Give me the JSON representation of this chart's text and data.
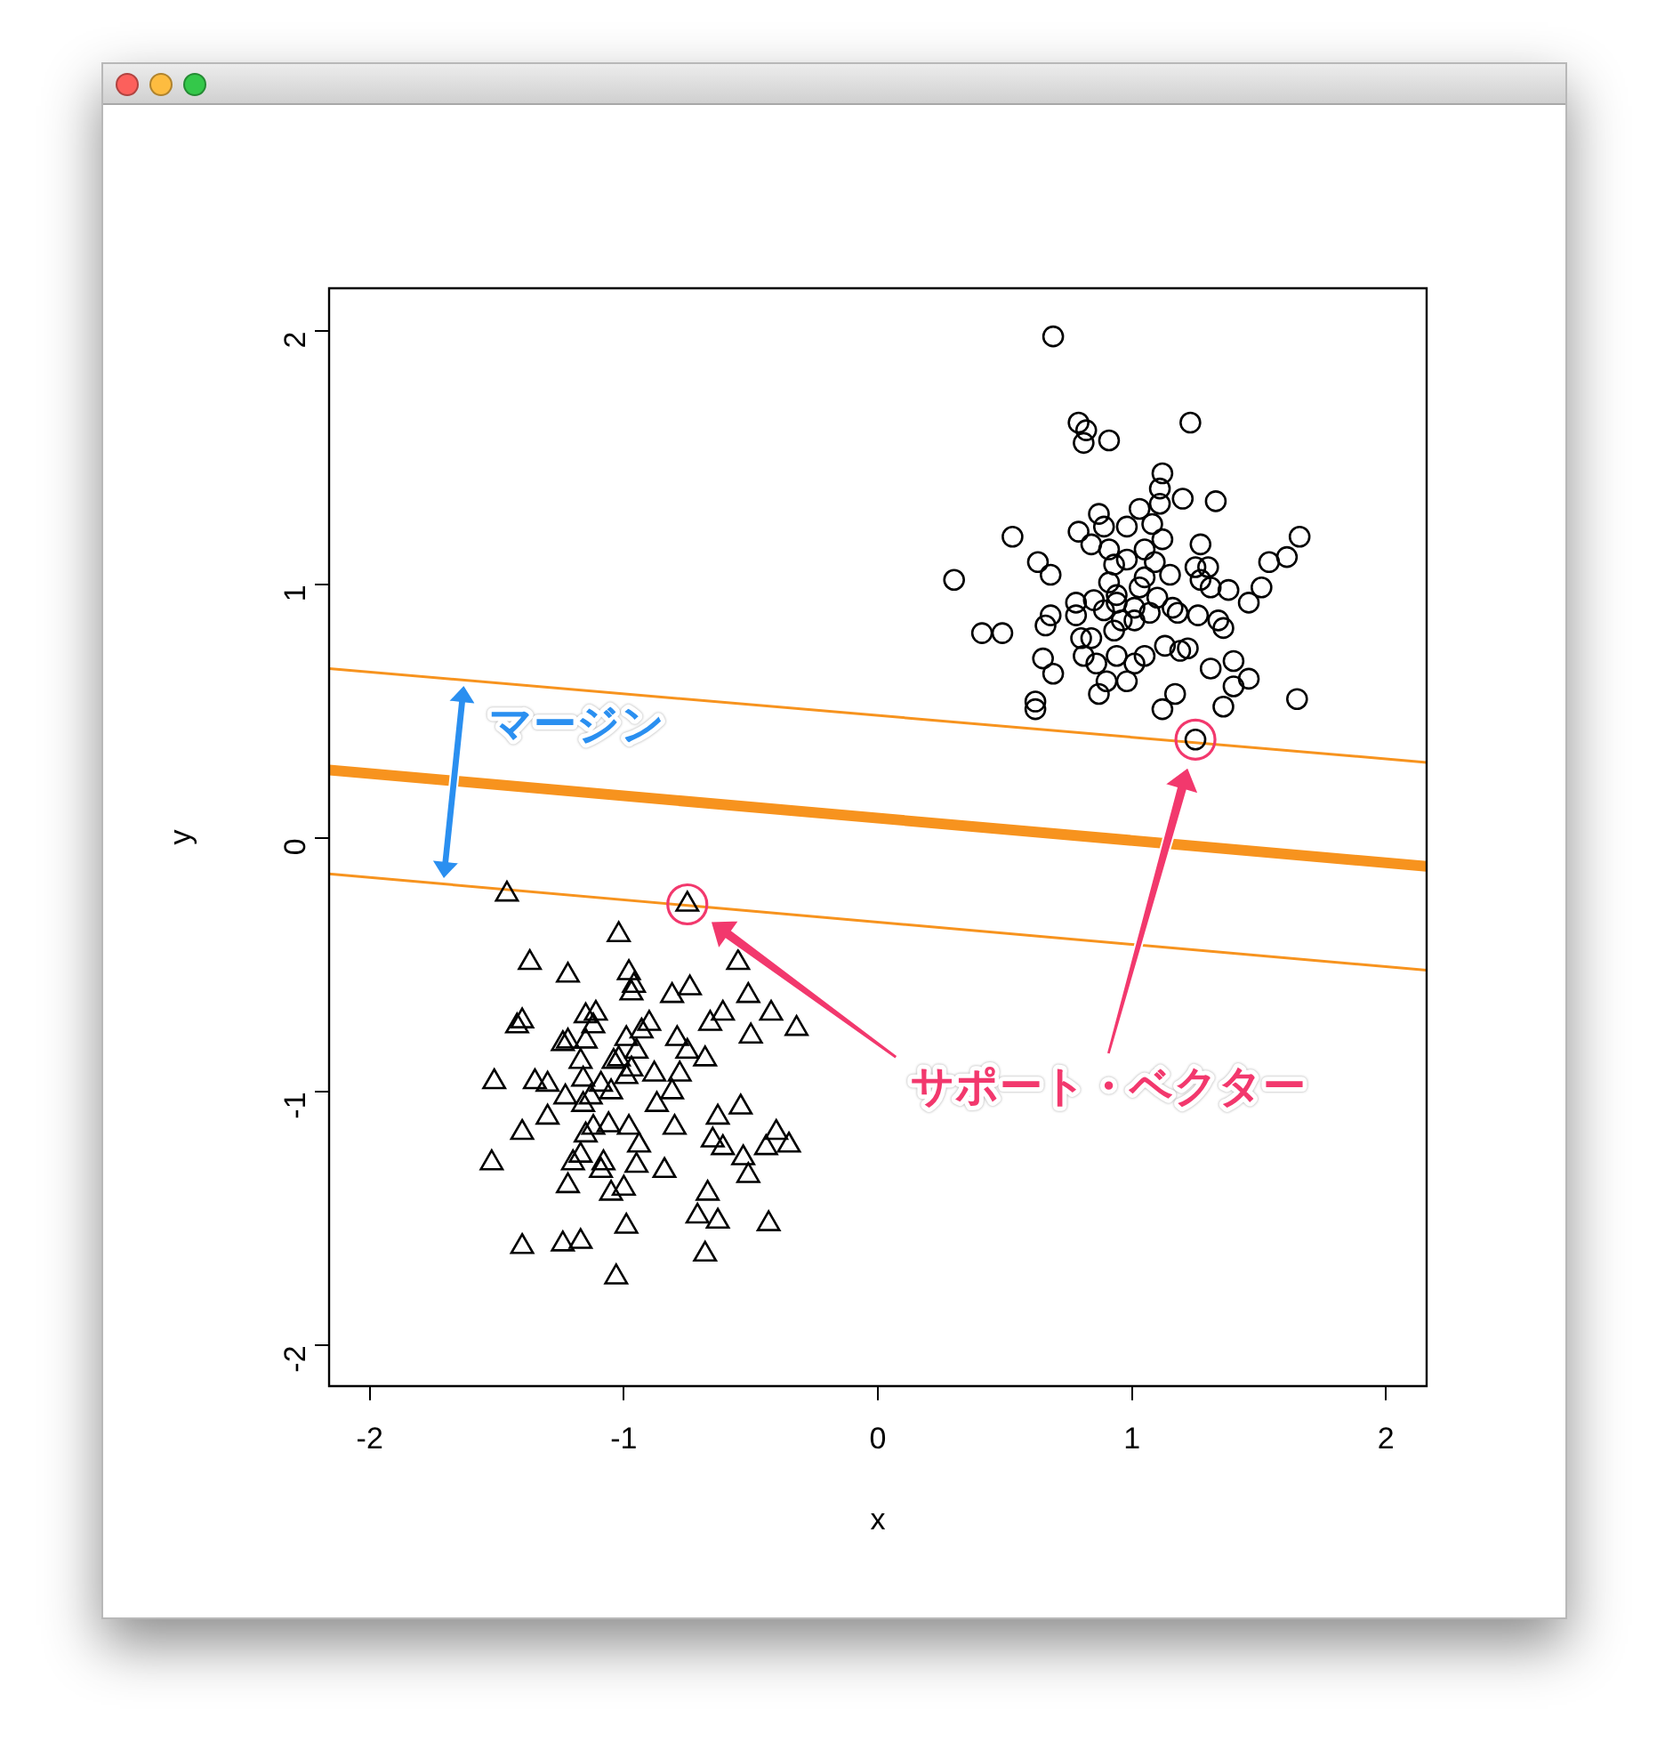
{
  "chart_data": {
    "type": "scatter",
    "xlabel": "x",
    "ylabel": "y",
    "xlim": [
      -2.16,
      2.16
    ],
    "ylim": [
      -2.16,
      2.17
    ],
    "xticks": [
      -2,
      -1,
      0,
      1,
      2
    ],
    "yticks": [
      -2,
      -1,
      0,
      1,
      2
    ],
    "grid": false,
    "legend": false,
    "annotations": [
      "マージン",
      "サポート・ベクター"
    ],
    "series": [
      {
        "type": "scatter",
        "marker": "circle",
        "color": "#000000",
        "x": [
          0.69,
          0.79,
          0.82,
          0.81,
          0.91,
          1.23,
          1.12,
          1.11,
          1.11,
          1.2,
          1.33,
          0.87,
          1.03,
          0.53,
          1.66,
          0.79,
          0.84,
          0.89,
          0.98,
          1.08,
          1.12,
          1.27,
          1.61,
          1.54,
          0.3,
          0.63,
          0.68,
          0.91,
          0.93,
          0.98,
          1.05,
          1.09,
          1.05,
          1.15,
          1.25,
          1.3,
          1.27,
          1.31,
          1.38,
          1.51,
          1.46,
          0.91,
          0.94,
          1.03,
          1.1,
          0.78,
          0.85,
          0.89,
          0.94,
          1.01,
          1.07,
          1.16,
          1.18,
          1.26,
          0.68,
          0.66,
          0.78,
          0.96,
          1.01,
          0.93,
          1.34,
          1.36,
          0.41,
          0.49,
          0.8,
          0.84,
          1.13,
          1.19,
          1.22,
          0.65,
          0.81,
          0.86,
          0.94,
          1.01,
          1.05,
          1.31,
          1.4,
          1.46,
          1.4,
          0.69,
          0.9,
          0.98,
          0.87,
          1.17,
          1.12,
          1.36,
          1.65,
          0.62,
          0.62,
          1.25
        ],
        "values": [
          1.98,
          1.64,
          1.61,
          1.56,
          1.57,
          1.64,
          1.44,
          1.38,
          1.32,
          1.34,
          1.33,
          1.28,
          1.3,
          1.19,
          1.19,
          1.21,
          1.16,
          1.23,
          1.23,
          1.24,
          1.18,
          1.16,
          1.11,
          1.09,
          1.02,
          1.09,
          1.04,
          1.14,
          1.08,
          1.1,
          1.14,
          1.09,
          1.03,
          1.04,
          1.07,
          1.07,
          1.02,
          0.99,
          0.98,
          0.99,
          0.93,
          1.01,
          0.96,
          0.99,
          0.95,
          0.93,
          0.94,
          0.9,
          0.93,
          0.91,
          0.89,
          0.91,
          0.89,
          0.88,
          0.88,
          0.84,
          0.88,
          0.86,
          0.86,
          0.82,
          0.86,
          0.83,
          0.81,
          0.81,
          0.79,
          0.79,
          0.76,
          0.74,
          0.75,
          0.71,
          0.72,
          0.69,
          0.72,
          0.69,
          0.72,
          0.67,
          0.7,
          0.63,
          0.6,
          0.65,
          0.62,
          0.62,
          0.57,
          0.57,
          0.51,
          0.52,
          0.55,
          0.54,
          0.51,
          0.39
        ]
      },
      {
        "type": "scatter",
        "marker": "triangle",
        "color": "#000000",
        "x": [
          -1.46,
          -0.75,
          -1.02,
          -1.37,
          -1.22,
          -0.98,
          -0.96,
          -0.97,
          -0.81,
          -0.74,
          -0.55,
          -0.51,
          -0.61,
          -0.66,
          -0.42,
          -0.32,
          -0.5,
          -1.4,
          -1.42,
          -1.15,
          -1.11,
          -1.12,
          -0.9,
          -0.93,
          -0.99,
          -1.24,
          -1.22,
          -1.15,
          -0.79,
          -0.75,
          -0.68,
          -0.95,
          -1.02,
          -1.17,
          -1.04,
          -0.97,
          -0.88,
          -0.78,
          -1.51,
          -1.35,
          -1.3,
          -1.16,
          -0.99,
          -1.09,
          -1.23,
          -1.13,
          -1.05,
          -0.81,
          -0.87,
          -1.3,
          -1.16,
          -1.4,
          -1.12,
          -1.15,
          -1.06,
          -0.98,
          -0.8,
          -0.63,
          -0.54,
          -0.65,
          -0.61,
          -0.4,
          -0.35,
          -0.44,
          -0.53,
          -0.94,
          -1.52,
          -1.2,
          -1.17,
          -1.08,
          -1.09,
          -0.95,
          -0.84,
          -0.51,
          -1.22,
          -1.0,
          -1.05,
          -0.67,
          -0.71,
          -0.63,
          -0.43,
          -0.99,
          -1.4,
          -1.24,
          -1.17,
          -0.68,
          -1.03
        ],
        "values": [
          -0.22,
          -0.26,
          -0.38,
          -0.49,
          -0.54,
          -0.53,
          -0.58,
          -0.61,
          -0.62,
          -0.59,
          -0.49,
          -0.62,
          -0.69,
          -0.73,
          -0.69,
          -0.75,
          -0.78,
          -0.72,
          -0.74,
          -0.7,
          -0.69,
          -0.74,
          -0.73,
          -0.76,
          -0.79,
          -0.81,
          -0.8,
          -0.8,
          -0.79,
          -0.84,
          -0.87,
          -0.84,
          -0.87,
          -0.88,
          -0.88,
          -0.91,
          -0.93,
          -0.93,
          -0.96,
          -0.96,
          -0.97,
          -0.95,
          -0.94,
          -0.97,
          -1.02,
          -1.02,
          -1.0,
          -1.0,
          -1.05,
          -1.1,
          -1.05,
          -1.16,
          -1.14,
          -1.17,
          -1.13,
          -1.14,
          -1.14,
          -1.1,
          -1.06,
          -1.19,
          -1.22,
          -1.16,
          -1.21,
          -1.22,
          -1.26,
          -1.21,
          -1.28,
          -1.28,
          -1.25,
          -1.28,
          -1.31,
          -1.29,
          -1.31,
          -1.33,
          -1.37,
          -1.38,
          -1.4,
          -1.4,
          -1.49,
          -1.51,
          -1.52,
          -1.53,
          -1.61,
          -1.6,
          -1.59,
          -1.64,
          -1.73
        ]
      },
      {
        "type": "line",
        "marker": "none",
        "color": "#f7931e",
        "x": [
          -2.16,
          2.16
        ],
        "values": [
          0.27,
          -0.11
        ]
      },
      {
        "type": "line",
        "marker": "none",
        "color": "#f7931e",
        "x": [
          -2.16,
          2.16
        ],
        "values": [
          0.67,
          0.3
        ]
      },
      {
        "type": "line",
        "marker": "none",
        "color": "#f7931e",
        "x": [
          -2.16,
          2.16
        ],
        "values": [
          -0.14,
          -0.52
        ]
      }
    ]
  }
}
